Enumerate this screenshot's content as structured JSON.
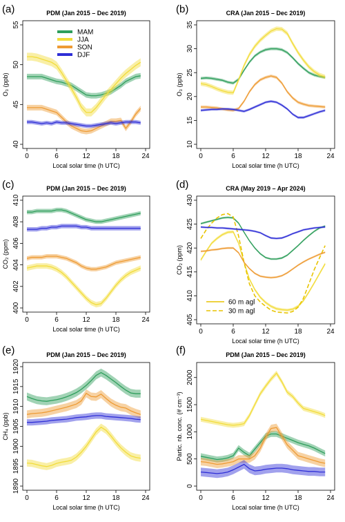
{
  "colors": {
    "MAM": "#2e9e5b",
    "JJA": "#f2dc3a",
    "SON": "#ee9b34",
    "DJF": "#2e2ed6",
    "JJA_line": "#e8c400"
  },
  "chart_data": [
    {
      "id": "a",
      "panel_label": "(a)",
      "type": "line",
      "title": "PDM (Jan 2015 – Dec 2019)",
      "xlabel": "Local solar time (h UTC)",
      "ylabel": "O₃ (ppb)",
      "xlim": [
        0,
        24
      ],
      "ylim": [
        40,
        55
      ],
      "xticks": [
        0,
        6,
        12,
        18,
        24
      ],
      "yticks": [
        40,
        45,
        50,
        55
      ],
      "legend": {
        "placement": "top-center",
        "entries": [
          "MAM",
          "JJA",
          "SON",
          "DJF"
        ]
      },
      "series": [
        {
          "name": "MAM",
          "color": "MAM",
          "band": 0.35,
          "values": [
            48.5,
            48.5,
            48.5,
            48.5,
            48.3,
            48.1,
            47.9,
            47.8,
            47.6,
            47.4,
            47.0,
            46.6,
            46.2,
            46.1,
            46.1,
            46.2,
            46.4,
            46.6,
            47.0,
            47.4,
            47.9,
            48.2,
            48.5,
            48.6
          ]
        },
        {
          "name": "JJA",
          "color": "JJA",
          "band": 0.5,
          "values": [
            51.0,
            51.0,
            50.9,
            50.7,
            50.5,
            50.3,
            49.9,
            49.0,
            48.0,
            47.0,
            45.9,
            44.7,
            44.0,
            44.0,
            44.6,
            45.4,
            46.2,
            46.9,
            47.6,
            48.3,
            48.9,
            49.4,
            49.9,
            50.3
          ]
        },
        {
          "name": "SON",
          "color": "SON",
          "band": 0.35,
          "values": [
            44.6,
            44.6,
            44.6,
            44.6,
            44.4,
            44.2,
            44.0,
            43.4,
            42.8,
            42.3,
            42.0,
            41.7,
            41.6,
            41.7,
            42.0,
            42.3,
            42.6,
            42.9,
            42.9,
            43.0,
            42.0,
            42.8,
            43.8,
            44.5
          ]
        },
        {
          "name": "DJF",
          "color": "DJF",
          "band": 0.25,
          "values": [
            42.8,
            42.8,
            42.7,
            42.6,
            42.7,
            42.6,
            42.8,
            42.7,
            42.7,
            42.6,
            42.5,
            42.4,
            42.3,
            42.3,
            42.4,
            42.5,
            42.6,
            42.7,
            42.6,
            42.7,
            42.8,
            42.8,
            42.8,
            42.7
          ]
        }
      ]
    },
    {
      "id": "b",
      "panel_label": "(b)",
      "type": "line",
      "title": "CRA (Jan 2015 – Dec 2019)",
      "xlabel": "Local solar time (h UTC)",
      "ylabel": "O₃ (ppb)",
      "xlim": [
        0,
        24
      ],
      "ylim": [
        10,
        35
      ],
      "xticks": [
        0,
        6,
        12,
        18,
        24
      ],
      "yticks": [
        10,
        15,
        20,
        25,
        30,
        35
      ],
      "series": [
        {
          "name": "MAM",
          "color": "MAM",
          "band": 0.3,
          "values": [
            23.8,
            23.9,
            23.8,
            23.6,
            23.4,
            23.0,
            22.8,
            23.6,
            25.5,
            27.2,
            28.5,
            29.3,
            29.8,
            30.0,
            30.0,
            29.8,
            29.2,
            28.1,
            26.9,
            25.9,
            25.0,
            24.5,
            24.2,
            24.0
          ]
        },
        {
          "name": "JJA",
          "color": "JJA",
          "band": 0.45,
          "values": [
            22.7,
            22.5,
            22.1,
            21.6,
            21.2,
            20.9,
            20.8,
            23.5,
            26.5,
            28.8,
            30.5,
            31.8,
            32.8,
            33.7,
            34.2,
            34.1,
            33.2,
            31.1,
            29.2,
            27.6,
            26.2,
            25.2,
            24.5,
            24.1
          ]
        },
        {
          "name": "SON",
          "color": "SON",
          "band": 0.3,
          "values": [
            17.8,
            17.8,
            17.7,
            17.6,
            17.4,
            17.2,
            17.1,
            17.5,
            19.0,
            21.0,
            22.5,
            23.5,
            24.0,
            24.3,
            24.0,
            22.8,
            21.0,
            19.7,
            18.8,
            18.4,
            18.1,
            18.0,
            17.9,
            17.8
          ]
        },
        {
          "name": "DJF",
          "color": "DJF",
          "band": 0.25,
          "values": [
            17.1,
            17.2,
            17.3,
            17.3,
            17.4,
            17.4,
            17.3,
            17.1,
            16.9,
            17.3,
            17.8,
            18.3,
            18.8,
            19.0,
            18.8,
            18.2,
            17.4,
            16.3,
            15.6,
            15.6,
            16.0,
            16.4,
            16.8,
            17.1
          ]
        }
      ]
    },
    {
      "id": "c",
      "panel_label": "(c)",
      "type": "line",
      "title": "PDM (Jan 2015 – Dec 2019)",
      "xlabel": "Local solar time (h UTC)",
      "ylabel": "CO₂ (ppm)",
      "xlim": [
        0,
        24
      ],
      "ylim": [
        400,
        410
      ],
      "xticks": [
        0,
        6,
        12,
        18,
        24
      ],
      "yticks": [
        400,
        402,
        404,
        406,
        408,
        410
      ],
      "series": [
        {
          "name": "MAM",
          "color": "MAM",
          "band": 0.2,
          "values": [
            408.9,
            408.9,
            409.0,
            409.0,
            409.0,
            409.0,
            409.1,
            409.1,
            409.0,
            408.8,
            408.6,
            408.4,
            408.2,
            408.1,
            408.0,
            408.0,
            408.1,
            408.2,
            408.3,
            408.4,
            408.5,
            408.6,
            408.7,
            408.8
          ]
        },
        {
          "name": "JJA",
          "color": "JJA",
          "band": 0.25,
          "values": [
            403.7,
            403.8,
            403.9,
            403.9,
            403.9,
            403.8,
            403.6,
            403.3,
            402.9,
            402.4,
            401.9,
            401.4,
            400.9,
            400.5,
            400.3,
            400.4,
            400.9,
            401.5,
            402.1,
            402.6,
            403.0,
            403.3,
            403.5,
            403.7
          ]
        },
        {
          "name": "SON",
          "color": "SON",
          "band": 0.2,
          "values": [
            404.6,
            404.7,
            404.7,
            404.7,
            404.8,
            404.8,
            404.8,
            404.7,
            404.6,
            404.4,
            404.2,
            403.9,
            403.7,
            403.6,
            403.6,
            403.7,
            403.8,
            404.0,
            404.2,
            404.3,
            404.4,
            404.5,
            404.6,
            404.7
          ]
        },
        {
          "name": "DJF",
          "color": "DJF",
          "band": 0.2,
          "values": [
            407.3,
            407.3,
            407.3,
            407.4,
            407.4,
            407.5,
            407.5,
            407.6,
            407.6,
            407.6,
            407.6,
            407.5,
            407.5,
            407.4,
            407.4,
            407.4,
            407.4,
            407.4,
            407.4,
            407.4,
            407.4,
            407.4,
            407.4,
            407.4
          ]
        }
      ]
    },
    {
      "id": "d",
      "panel_label": "(d)",
      "type": "line",
      "title": "CRA (May 2019 – Apr 2024)",
      "xlabel": "Local solar time (h UTC)",
      "ylabel": "CO₂ (ppm)",
      "xlim": [
        0,
        24
      ],
      "ylim": [
        405,
        430
      ],
      "xticks": [
        0,
        6,
        12,
        18,
        24
      ],
      "yticks": [
        405,
        410,
        415,
        420,
        425,
        430
      ],
      "legend": {
        "placement": "bottom-left",
        "entries": [
          "60 m agl",
          "30 m agl"
        ]
      },
      "series": [
        {
          "name": "MAM",
          "color": "MAM",
          "band": 0.2,
          "values": [
            425.1,
            425.4,
            425.7,
            426.0,
            426.3,
            426.4,
            426.3,
            425.2,
            423.3,
            421.5,
            420.0,
            418.8,
            418.0,
            417.7,
            417.7,
            417.9,
            418.5,
            419.5,
            420.5,
            421.6,
            422.6,
            423.5,
            424.2,
            424.6
          ]
        },
        {
          "name": "JJA (60 m)",
          "color": "JJA",
          "band": 0.3,
          "values": [
            417.5,
            419.3,
            421.0,
            422.0,
            422.8,
            423.3,
            423.4,
            421.0,
            417.0,
            413.5,
            411.3,
            409.7,
            408.6,
            407.8,
            407.3,
            407.1,
            407.0,
            407.2,
            407.8,
            409.0,
            410.8,
            412.7,
            414.7,
            416.7
          ]
        },
        {
          "name": "JJA (30 m)",
          "color": "JJA_line",
          "dashed": true,
          "band": 0,
          "values": [
            422.0,
            423.8,
            425.2,
            426.3,
            427.0,
            427.2,
            426.5,
            422.5,
            417.0,
            412.5,
            410.0,
            408.7,
            407.8,
            407.0,
            406.6,
            406.5,
            406.4,
            406.7,
            407.6,
            409.5,
            412.5,
            415.5,
            418.0,
            420.5
          ]
        },
        {
          "name": "SON",
          "color": "SON",
          "band": 0.2,
          "values": [
            419.3,
            419.4,
            419.6,
            419.7,
            419.9,
            420.0,
            420.0,
            419.0,
            417.0,
            415.7,
            414.7,
            414.1,
            413.9,
            413.8,
            413.9,
            414.2,
            414.8,
            415.6,
            416.4,
            417.1,
            417.7,
            418.2,
            418.7,
            419.1
          ]
        },
        {
          "name": "DJF",
          "color": "DJF",
          "band": 0.2,
          "values": [
            424.4,
            424.3,
            424.3,
            424.2,
            424.2,
            424.1,
            424.0,
            423.9,
            423.8,
            423.7,
            423.5,
            423.2,
            422.6,
            422.1,
            422.0,
            422.1,
            422.5,
            423.0,
            423.4,
            423.8,
            424.0,
            424.2,
            424.3,
            424.4
          ]
        }
      ]
    },
    {
      "id": "e",
      "panel_label": "(e)",
      "type": "line",
      "title": "PDM (Jan 2015 – Dec 2019)",
      "xlabel": "Local solar time (h UTC)",
      "ylabel": "CH₄ (ppb)",
      "xlim": [
        0,
        24
      ],
      "ylim": [
        1890,
        1920
      ],
      "xticks": [
        0,
        6,
        12,
        18,
        24
      ],
      "yticks": [
        1890,
        1895,
        1900,
        1905,
        1910,
        1915,
        1920
      ],
      "series": [
        {
          "name": "MAM",
          "color": "MAM",
          "band": 1.0,
          "values": [
            1912.5,
            1912.0,
            1911.6,
            1911.4,
            1911.3,
            1911.5,
            1911.7,
            1912.0,
            1912.4,
            1912.9,
            1913.5,
            1914.3,
            1915.3,
            1916.5,
            1917.8,
            1918.5,
            1917.8,
            1916.9,
            1916.0,
            1915.0,
            1914.1,
            1913.4,
            1913.2,
            1913.2
          ]
        },
        {
          "name": "JJA",
          "color": "JJA",
          "band": 0.9,
          "values": [
            1895.8,
            1895.7,
            1895.4,
            1895.1,
            1894.9,
            1895.2,
            1895.7,
            1896.0,
            1896.2,
            1896.5,
            1897.3,
            1898.5,
            1900.0,
            1901.8,
            1903.6,
            1904.8,
            1904.0,
            1902.6,
            1901.0,
            1899.6,
            1898.5,
            1897.6,
            1897.2,
            1897.0
          ]
        },
        {
          "name": "SON",
          "color": "SON",
          "band": 1.0,
          "values": [
            1908.0,
            1908.2,
            1908.3,
            1908.4,
            1908.6,
            1908.9,
            1909.2,
            1909.5,
            1909.8,
            1910.2,
            1910.6,
            1911.4,
            1913.3,
            1912.5,
            1912.4,
            1913.1,
            1912.0,
            1911.0,
            1910.3,
            1909.8,
            1909.6,
            1908.9,
            1908.4,
            1908.0
          ]
        },
        {
          "name": "DJF",
          "color": "DJF",
          "band": 0.8,
          "values": [
            1906.0,
            1906.0,
            1906.1,
            1906.2,
            1906.3,
            1906.5,
            1906.6,
            1906.7,
            1906.8,
            1907.0,
            1907.2,
            1907.3,
            1907.4,
            1907.6,
            1907.7,
            1907.7,
            1907.5,
            1907.4,
            1907.3,
            1907.2,
            1907.1,
            1907.0,
            1906.8,
            1906.7
          ]
        }
      ]
    },
    {
      "id": "f",
      "panel_label": "(f)",
      "type": "line",
      "title": "PDM (Jan 2015 – Dec 2019)",
      "xlabel": "Local solar time (h UTC)",
      "ylabel": "Partic. nb. conc. (# cm⁻³)",
      "xlim": [
        0,
        24
      ],
      "ylim": [
        0,
        2200
      ],
      "xticks": [
        0,
        6,
        12,
        18,
        24
      ],
      "yticks": [
        0,
        500,
        1000,
        1500,
        2000
      ],
      "series": [
        {
          "name": "MAM",
          "color": "MAM",
          "band": 55,
          "values": [
            550,
            530,
            510,
            490,
            500,
            520,
            560,
            700,
            620,
            560,
            680,
            800,
            920,
            960,
            960,
            920,
            880,
            840,
            800,
            770,
            740,
            700,
            650,
            600
          ]
        },
        {
          "name": "JJA",
          "color": "JJA",
          "band": 45,
          "values": [
            1230,
            1210,
            1190,
            1170,
            1150,
            1130,
            1120,
            1130,
            1150,
            1300,
            1500,
            1700,
            1840,
            1970,
            2080,
            1920,
            1730,
            1650,
            1530,
            1430,
            1400,
            1370,
            1340,
            1300
          ]
        },
        {
          "name": "SON",
          "color": "SON",
          "band": 70,
          "values": [
            450,
            440,
            420,
            400,
            410,
            430,
            450,
            500,
            500,
            500,
            560,
            700,
            900,
            1060,
            1080,
            920,
            760,
            660,
            560,
            530,
            500,
            470,
            440,
            420
          ]
        },
        {
          "name": "DJF",
          "color": "DJF",
          "band": 80,
          "values": [
            260,
            250,
            240,
            230,
            240,
            260,
            300,
            350,
            400,
            320,
            280,
            290,
            310,
            320,
            330,
            330,
            320,
            300,
            290,
            280,
            270,
            270,
            260,
            260
          ]
        }
      ]
    }
  ]
}
